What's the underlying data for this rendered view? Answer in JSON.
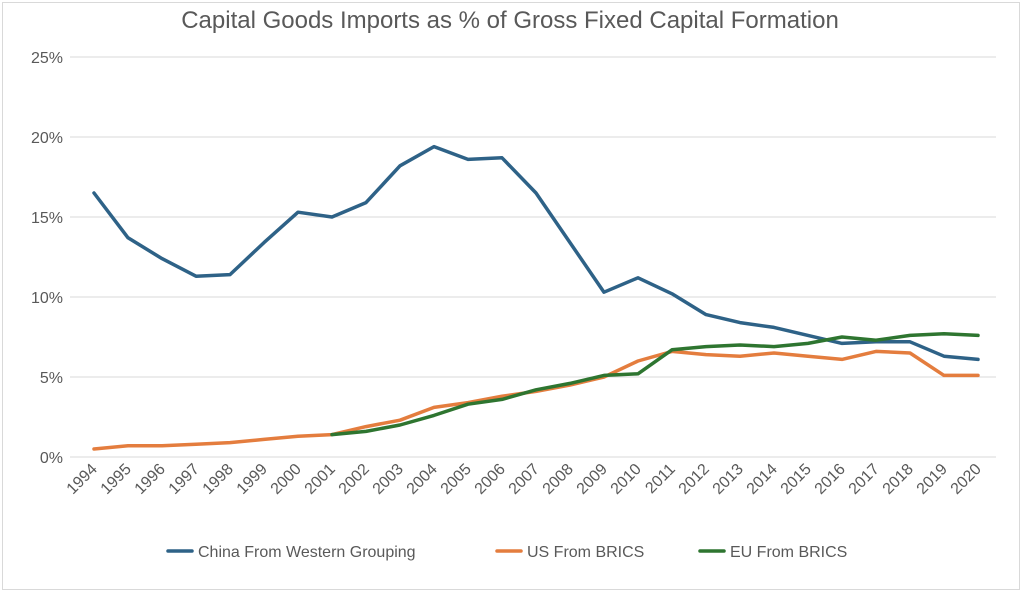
{
  "chart_data": {
    "type": "line",
    "title": "Capital Goods Imports as % of Gross Fixed Capital Formation",
    "xlabel": "",
    "ylabel": "",
    "ylim": [
      0,
      25
    ],
    "y_ticks": [
      0,
      5,
      10,
      15,
      20,
      25
    ],
    "y_tick_labels": [
      "0%",
      "5%",
      "10%",
      "15%",
      "20%",
      "25%"
    ],
    "categories": [
      "1994",
      "1995",
      "1996",
      "1997",
      "1998",
      "1999",
      "2000",
      "2001",
      "2002",
      "2003",
      "2004",
      "2005",
      "2006",
      "2007",
      "2008",
      "2009",
      "2010",
      "2011",
      "2012",
      "2013",
      "2014",
      "2015",
      "2016",
      "2017",
      "2018",
      "2019",
      "2020"
    ],
    "grid": true,
    "legend_position": "bottom",
    "series": [
      {
        "name": "China From Western Grouping",
        "color": "#2e6287",
        "values": [
          16.5,
          13.7,
          12.4,
          11.3,
          11.4,
          13.4,
          15.3,
          15.0,
          15.9,
          18.2,
          19.4,
          18.6,
          18.7,
          16.5,
          13.4,
          10.3,
          11.2,
          10.2,
          8.9,
          8.4,
          8.1,
          7.6,
          7.1,
          7.2,
          7.2,
          6.3,
          6.1
        ]
      },
      {
        "name": "US From BRICS",
        "color": "#e47d3e",
        "values": [
          0.5,
          0.7,
          0.7,
          0.8,
          0.9,
          1.1,
          1.3,
          1.4,
          1.9,
          2.3,
          3.1,
          3.4,
          3.8,
          4.1,
          4.5,
          5.0,
          6.0,
          6.6,
          6.4,
          6.3,
          6.5,
          6.3,
          6.1,
          6.6,
          6.5,
          5.1,
          5.1
        ]
      },
      {
        "name": "EU From BRICS",
        "color": "#2e7530",
        "values": [
          null,
          null,
          null,
          null,
          null,
          null,
          null,
          1.4,
          1.6,
          2.0,
          2.6,
          3.3,
          3.6,
          4.2,
          4.6,
          5.1,
          5.2,
          6.7,
          6.9,
          7.0,
          6.9,
          7.1,
          7.5,
          7.3,
          7.6,
          7.7,
          7.6
        ]
      }
    ]
  }
}
